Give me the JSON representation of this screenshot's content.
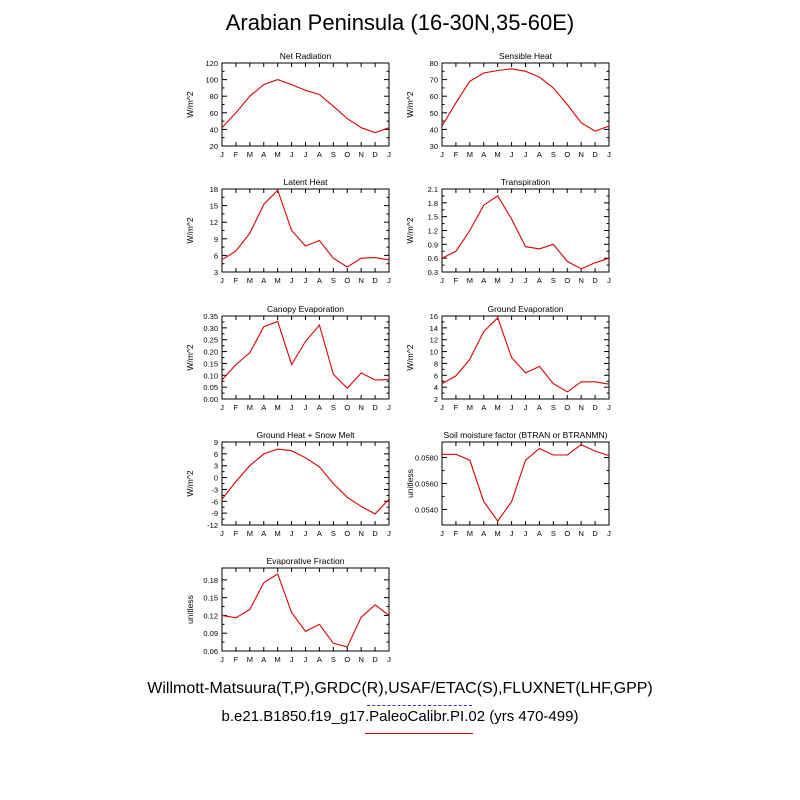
{
  "title": "Arabian Peninsula (16-30N,35-60E)",
  "footer": {
    "observations": "Willmott-Matsuura(T,P),GRDC(R),USAF/ETAC(S),FLUXNET(LHF,GPP)",
    "model_case": "b.e21.B1850.f19_g17.PaleoCalibr.PI.02 (yrs 470-499)"
  },
  "colors": {
    "model_line": "#dd0000",
    "obs_line": "#3333dd",
    "axis": "#000000"
  },
  "chart_data": [
    {
      "type": "line",
      "title": "Net Radiation",
      "ylabel": "W/m^2",
      "categories": [
        "J",
        "F",
        "M",
        "A",
        "M",
        "J",
        "J",
        "A",
        "S",
        "O",
        "N",
        "D",
        "J"
      ],
      "ylim": [
        20,
        120
      ],
      "yticks": [
        "20",
        "40",
        "60",
        "80",
        "100",
        "120"
      ],
      "series": [
        {
          "name": "model",
          "values": [
            42,
            60,
            80,
            94,
            100,
            94,
            87,
            82,
            68,
            53,
            42,
            36,
            42
          ]
        }
      ]
    },
    {
      "type": "line",
      "title": "Sensible Heat",
      "ylabel": "W/m^2",
      "categories": [
        "J",
        "F",
        "M",
        "A",
        "M",
        "J",
        "J",
        "A",
        "S",
        "O",
        "N",
        "D",
        "J"
      ],
      "ylim": [
        30,
        80
      ],
      "yticks": [
        "30",
        "40",
        "50",
        "60",
        "70",
        "80"
      ],
      "series": [
        {
          "name": "model",
          "values": [
            42,
            56,
            69,
            74,
            75.5,
            76.5,
            75,
            71.5,
            65,
            55,
            44,
            39,
            42
          ]
        }
      ]
    },
    {
      "type": "line",
      "title": "Latent Heat",
      "ylabel": "W/m^2",
      "categories": [
        "J",
        "F",
        "M",
        "A",
        "M",
        "J",
        "J",
        "A",
        "S",
        "O",
        "N",
        "D",
        "J"
      ],
      "ylim": [
        3,
        18
      ],
      "yticks": [
        "3",
        "6",
        "9",
        "12",
        "15",
        "18"
      ],
      "series": [
        {
          "name": "model",
          "values": [
            5.2,
            6.8,
            10,
            15.2,
            17.8,
            10.5,
            7.7,
            8.7,
            5.5,
            3.9,
            5.5,
            5.6,
            5.2
          ]
        }
      ]
    },
    {
      "type": "line",
      "title": "Transpiration",
      "ylabel": "W/m^2",
      "categories": [
        "J",
        "F",
        "M",
        "A",
        "M",
        "J",
        "J",
        "A",
        "S",
        "O",
        "N",
        "D",
        "J"
      ],
      "ylim": [
        0.3,
        2.1
      ],
      "yticks": [
        "0.3",
        "0.6",
        "0.9",
        "1.2",
        "1.5",
        "1.8",
        "2.1"
      ],
      "series": [
        {
          "name": "model",
          "values": [
            0.6,
            0.75,
            1.2,
            1.75,
            1.95,
            1.45,
            0.85,
            0.8,
            0.9,
            0.53,
            0.37,
            0.5,
            0.6
          ]
        }
      ]
    },
    {
      "type": "line",
      "title": "Canopy Evaporation",
      "ylabel": "W/m^2",
      "categories": [
        "J",
        "F",
        "M",
        "A",
        "M",
        "J",
        "J",
        "A",
        "S",
        "O",
        "N",
        "D",
        "J"
      ],
      "ylim": [
        0,
        0.35
      ],
      "yticks": [
        "0.00",
        "0.05",
        "0.10",
        "0.15",
        "0.20",
        "0.25",
        "0.30",
        "0.35"
      ],
      "series": [
        {
          "name": "model",
          "values": [
            0.08,
            0.145,
            0.195,
            0.305,
            0.327,
            0.145,
            0.243,
            0.312,
            0.105,
            0.045,
            0.11,
            0.08,
            0.082
          ]
        }
      ]
    },
    {
      "type": "line",
      "title": "Ground Evaporation",
      "ylabel": "W/m^2",
      "categories": [
        "J",
        "F",
        "M",
        "A",
        "M",
        "J",
        "J",
        "A",
        "S",
        "O",
        "N",
        "D",
        "J"
      ],
      "ylim": [
        2,
        16
      ],
      "yticks": [
        "2",
        "4",
        "6",
        "8",
        "10",
        "12",
        "14",
        "16"
      ],
      "series": [
        {
          "name": "model",
          "values": [
            4.6,
            5.9,
            8.7,
            13.4,
            15.7,
            9.0,
            6.4,
            7.5,
            4.6,
            3.2,
            4.9,
            4.9,
            4.5
          ]
        }
      ]
    },
    {
      "type": "line",
      "title": "Ground Heat + Snow Melt",
      "ylabel": "W/m^2",
      "categories": [
        "J",
        "F",
        "M",
        "A",
        "M",
        "J",
        "J",
        "A",
        "S",
        "O",
        "N",
        "D",
        "J"
      ],
      "ylim": [
        -12,
        9
      ],
      "yticks": [
        "-12",
        "-9",
        "-6",
        "-3",
        "0",
        "3",
        "6",
        "9"
      ],
      "series": [
        {
          "name": "model",
          "values": [
            -5.5,
            -1,
            3,
            6,
            7.2,
            6.8,
            5,
            2.7,
            -1.5,
            -5,
            -7.3,
            -9.2,
            -5.5
          ]
        }
      ]
    },
    {
      "type": "line",
      "title": "Soil moisture factor (BTRAN or BTRANMN)",
      "ylabel": "unitless",
      "categories": [
        "J",
        "F",
        "M",
        "A",
        "M",
        "J",
        "J",
        "A",
        "S",
        "O",
        "N",
        "D",
        "J"
      ],
      "ylim": [
        0.0528,
        0.0592
      ],
      "yticks": [
        "0.0540",
        "0.0560",
        "0.0580"
      ],
      "yticks_values": [
        0.054,
        0.056,
        0.058
      ],
      "series": [
        {
          "name": "model",
          "values": [
            0.05825,
            0.05825,
            0.0578,
            0.0546,
            0.0531,
            0.0546,
            0.0578,
            0.0587,
            0.0582,
            0.0582,
            0.059,
            0.0585,
            0.05815
          ]
        }
      ]
    },
    {
      "type": "line",
      "title": "Evaporative Fraction",
      "ylabel": "unitless",
      "categories": [
        "J",
        "F",
        "M",
        "A",
        "M",
        "J",
        "J",
        "A",
        "S",
        "O",
        "N",
        "D",
        "J"
      ],
      "ylim": [
        0.06,
        0.2
      ],
      "yticks": [
        "0.06",
        "0.09",
        "0.12",
        "0.15",
        "0.18"
      ],
      "yticks_values": [
        0.06,
        0.09,
        0.12,
        0.15,
        0.18
      ],
      "series": [
        {
          "name": "model",
          "values": [
            0.12,
            0.116,
            0.13,
            0.175,
            0.19,
            0.125,
            0.093,
            0.105,
            0.073,
            0.067,
            0.117,
            0.138,
            0.12
          ]
        }
      ]
    }
  ]
}
